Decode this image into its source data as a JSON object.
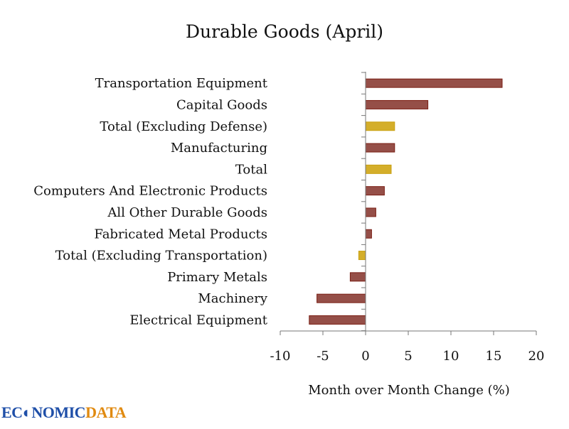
{
  "chart_data": {
    "type": "bar",
    "orientation": "horizontal",
    "title": "Durable Goods (April)",
    "xlabel": "Month over Month Change (%)",
    "ylabel": "",
    "xlim": [
      -10,
      20
    ],
    "xticks": [
      -10,
      -5,
      0,
      5,
      10,
      15,
      20
    ],
    "grid": false,
    "categories": [
      "Transportation Equipment",
      "Capital Goods",
      "Total (Excluding Defense)",
      "Manufacturing",
      "Total",
      "Computers And Electronic Products",
      "All Other Durable Goods",
      "Fabricated Metal Products",
      "Total (Excluding Transportation)",
      "Primary Metals",
      "Machinery",
      "Electrical Equipment"
    ],
    "values": [
      16.0,
      7.3,
      3.4,
      3.4,
      3.0,
      2.2,
      1.2,
      0.7,
      -0.8,
      -1.8,
      -5.7,
      -6.6
    ],
    "highlight": [
      false,
      false,
      true,
      false,
      true,
      false,
      false,
      false,
      true,
      false,
      false,
      false
    ],
    "colors": {
      "default": "#954f48",
      "highlight": "#d4ae2a",
      "default_edge": "#7a1e14",
      "highlight_edge": "#c9a010"
    }
  },
  "logo": {
    "part1": "ECONOMIC",
    "part1_display": "EC◐NOMIC",
    "part2": "DATA"
  }
}
